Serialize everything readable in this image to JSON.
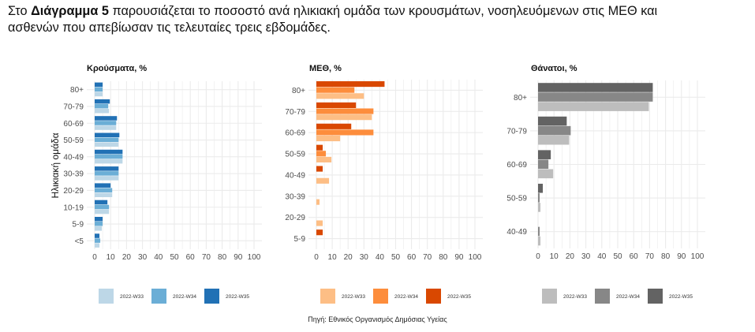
{
  "intro": {
    "prefix": "Στο ",
    "bold": "Διάγραμμα 5",
    "line1_rest": " παρουσιάζεται το ποσοστό ανά ηλικιακή ομάδα των κρουσμάτων, νοσηλευόμενων στις ΜΕΘ και",
    "line2": "ασθενών που απεβίωσαν τις τελευταίες τρεις εβδομάδες."
  },
  "source": "Πηγή: Εθνικός Οργανισμός Δημόσιας Υγείας",
  "chart_data": [
    {
      "type": "bar",
      "orientation": "horizontal",
      "title": "Κρούσματα, %",
      "ylabel": "Ηλικιακή ομάδα",
      "xlabel": "",
      "xlim": [
        0,
        100
      ],
      "xticks": [
        0,
        10,
        20,
        30,
        40,
        50,
        60,
        70,
        80,
        90,
        100
      ],
      "grid": true,
      "legend": "bottom",
      "categories": [
        "80+",
        "70-79",
        "60-69",
        "50-59",
        "40-49",
        "30-39",
        "20-29",
        "10-19",
        "5-9",
        "<5"
      ],
      "series": [
        {
          "name": "2022-W35",
          "color": "#2171b5",
          "values": [
            5,
            9.5,
            14,
            15.5,
            17.5,
            15,
            10,
            8,
            5,
            3
          ]
        },
        {
          "name": "2022-W34",
          "color": "#6baed6",
          "values": [
            5,
            8.5,
            13.5,
            15,
            17.5,
            15,
            11,
            9,
            5,
            3.5
          ]
        },
        {
          "name": "2022-W33",
          "color": "#bdd7e7",
          "values": [
            5,
            9,
            13.5,
            15,
            17.5,
            15,
            11,
            9,
            4.5,
            3
          ]
        }
      ],
      "legend_order": [
        "2022-W33",
        "2022-W34",
        "2022-W35"
      ]
    },
    {
      "type": "bar",
      "orientation": "horizontal",
      "title": "ΜΕΘ, %",
      "ylabel": "",
      "xlabel": "",
      "xlim": [
        0,
        100
      ],
      "xticks": [
        0,
        10,
        20,
        30,
        40,
        50,
        60,
        70,
        80,
        90,
        100
      ],
      "grid": true,
      "legend": "bottom",
      "categories": [
        "80+",
        "70-79",
        "60-69",
        "50-59",
        "40-49",
        "30-39",
        "20-29",
        "5-9"
      ],
      "series": [
        {
          "name": "2022-W35",
          "color": "#d94801",
          "values": [
            43,
            25,
            22,
            4,
            4,
            0,
            0,
            4
          ]
        },
        {
          "name": "2022-W34",
          "color": "#fd8d3c",
          "values": [
            24,
            36,
            36,
            6,
            0,
            0,
            0,
            0
          ]
        },
        {
          "name": "2022-W33",
          "color": "#fdbe85",
          "values": [
            30,
            35,
            15,
            9.5,
            8,
            2,
            4,
            0
          ]
        }
      ],
      "legend_order": [
        "2022-W33",
        "2022-W34",
        "2022-W35"
      ]
    },
    {
      "type": "bar",
      "orientation": "horizontal",
      "title": "Θάνατοι, %",
      "ylabel": "",
      "xlabel": "",
      "xlim": [
        0,
        100
      ],
      "xticks": [
        0,
        10,
        20,
        30,
        40,
        50,
        60,
        70,
        80,
        90,
        100
      ],
      "grid": true,
      "legend": "bottom",
      "categories": [
        "80+",
        "70-79",
        "60-69",
        "50-59",
        "40-49"
      ],
      "series": [
        {
          "name": "2022-W35",
          "color": "#636363",
          "values": [
            72,
            18,
            8,
            3,
            0
          ]
        },
        {
          "name": "2022-W34",
          "color": "#878787",
          "values": [
            72,
            20.5,
            6.5,
            1,
            1
          ]
        },
        {
          "name": "2022-W33",
          "color": "#bdbdbd",
          "values": [
            69.5,
            19.5,
            9.5,
            1.5,
            1.5
          ]
        }
      ],
      "legend_order": [
        "2022-W33",
        "2022-W34",
        "2022-W35"
      ]
    }
  ]
}
